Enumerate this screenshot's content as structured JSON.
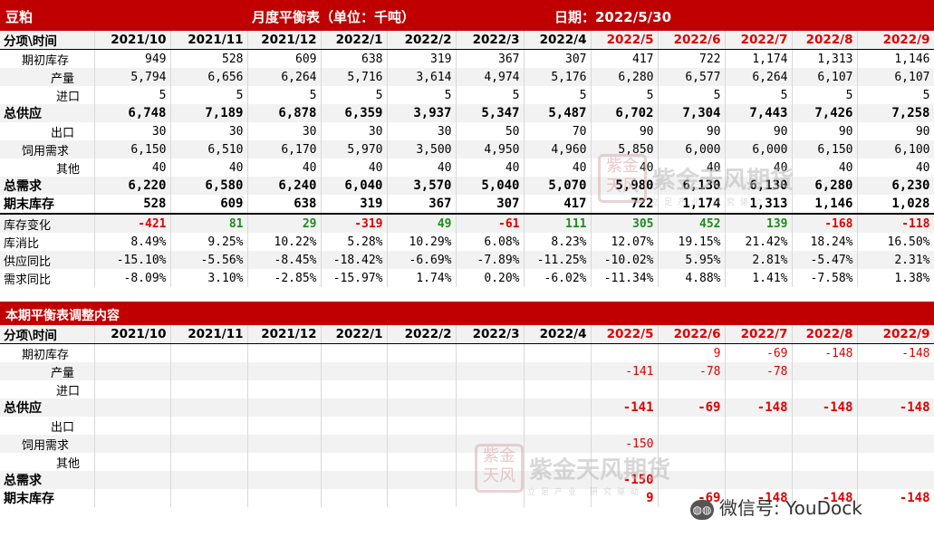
{
  "header": {
    "commodity": "豆粕",
    "title": "月度平衡表（单位：千吨）",
    "date": "日期：2022/5/30"
  },
  "columns": [
    "分项\\时间",
    "2021/10",
    "2021/11",
    "2021/12",
    "2022/1",
    "2022/2",
    "2022/3",
    "2022/4",
    "2022/5",
    "2022/6",
    "2022/7",
    "2022/8",
    "2022/9"
  ],
  "balance_rows": [
    {
      "label": "期初库存",
      "values": [
        "949",
        "528",
        "609",
        "638",
        "319",
        "367",
        "307",
        "417",
        "722",
        "1,174",
        "1,313",
        "1,146"
      ]
    },
    {
      "label": "产量",
      "values": [
        "5,794",
        "6,656",
        "6,264",
        "5,716",
        "3,614",
        "4,974",
        "5,176",
        "6,280",
        "6,577",
        "6,264",
        "6,107",
        "6,107"
      ]
    },
    {
      "label": "进口",
      "values": [
        "5",
        "5",
        "5",
        "5",
        "5",
        "5",
        "5",
        "5",
        "5",
        "5",
        "5",
        "5"
      ]
    },
    {
      "label": "总供应",
      "values": [
        "6,748",
        "7,189",
        "6,878",
        "6,359",
        "3,937",
        "5,347",
        "5,487",
        "6,702",
        "7,304",
        "7,443",
        "7,426",
        "7,258"
      ]
    },
    {
      "label": "出口",
      "values": [
        "30",
        "30",
        "30",
        "30",
        "30",
        "50",
        "70",
        "90",
        "90",
        "90",
        "90",
        "90"
      ]
    },
    {
      "label": "饲用需求",
      "values": [
        "6,150",
        "6,510",
        "6,170",
        "5,970",
        "3,500",
        "4,950",
        "4,960",
        "5,850",
        "6,000",
        "6,000",
        "6,150",
        "6,100"
      ]
    },
    {
      "label": "其他",
      "values": [
        "40",
        "40",
        "40",
        "40",
        "40",
        "40",
        "40",
        "40",
        "40",
        "40",
        "40",
        "40"
      ]
    },
    {
      "label": "总需求",
      "values": [
        "6,220",
        "6,580",
        "6,240",
        "6,040",
        "3,570",
        "5,040",
        "5,070",
        "5,980",
        "6,130",
        "6,130",
        "6,280",
        "6,230"
      ]
    },
    {
      "label": "期末库存",
      "values": [
        "528",
        "609",
        "638",
        "319",
        "367",
        "307",
        "417",
        "722",
        "1,174",
        "1,313",
        "1,146",
        "1,028"
      ]
    },
    {
      "label": "库存变化",
      "values": [
        "-421",
        "81",
        "29",
        "-319",
        "49",
        "-61",
        "111",
        "305",
        "452",
        "139",
        "-168",
        "-118"
      ]
    },
    {
      "label": "库消比",
      "values": [
        "8.49%",
        "9.25%",
        "10.22%",
        "5.28%",
        "10.29%",
        "6.08%",
        "8.23%",
        "12.07%",
        "19.15%",
        "21.42%",
        "18.24%",
        "16.50%"
      ]
    },
    {
      "label": "供应同比",
      "values": [
        "-15.10%",
        "-5.56%",
        "-8.45%",
        "-18.42%",
        "-6.69%",
        "-7.89%",
        "-11.25%",
        "-10.02%",
        "5.95%",
        "2.81%",
        "-5.47%",
        "2.31%"
      ]
    },
    {
      "label": "需求同比",
      "values": [
        "-8.09%",
        "3.10%",
        "-2.85%",
        "-15.97%",
        "1.74%",
        "0.20%",
        "-6.02%",
        "-11.34%",
        "4.88%",
        "1.41%",
        "-7.58%",
        "1.38%"
      ]
    }
  ],
  "adjust_title": "本期平衡表调整内容",
  "adjust_rows": [
    {
      "label": "期初库存",
      "values": [
        "",
        "",
        "",
        "",
        "",
        "",
        "",
        "",
        "9",
        "-69",
        "-148",
        "-148"
      ]
    },
    {
      "label": "产量",
      "values": [
        "",
        "",
        "",
        "",
        "",
        "",
        "",
        "-141",
        "-78",
        "-78",
        "",
        ""
      ]
    },
    {
      "label": "进口",
      "values": [
        "",
        "",
        "",
        "",
        "",
        "",
        "",
        "",
        "",
        "",
        "",
        ""
      ]
    },
    {
      "label": "总供应",
      "values": [
        "",
        "",
        "",
        "",
        "",
        "",
        "",
        "-141",
        "-69",
        "-148",
        "-148",
        "-148"
      ]
    },
    {
      "label": "出口",
      "values": [
        "",
        "",
        "",
        "",
        "",
        "",
        "",
        "",
        "",
        "",
        "",
        ""
      ]
    },
    {
      "label": "饲用需求",
      "values": [
        "",
        "",
        "",
        "",
        "",
        "",
        "",
        "-150",
        "",
        "",
        "",
        ""
      ]
    },
    {
      "label": "其他",
      "values": [
        "",
        "",
        "",
        "",
        "",
        "",
        "",
        "",
        "",
        "",
        "",
        ""
      ]
    },
    {
      "label": "总需求",
      "values": [
        "",
        "",
        "",
        "",
        "",
        "",
        "",
        "-150",
        "",
        "",
        "",
        ""
      ]
    },
    {
      "label": "期末库存",
      "values": [
        "",
        "",
        "",
        "",
        "",
        "",
        "",
        "9",
        "-69",
        "-148",
        "-148",
        "-148"
      ]
    }
  ],
  "watermark": {
    "seal": "紫金天风",
    "name": "紫金天风期货",
    "slogan": "立足产业 研究驱动"
  },
  "wechat": {
    "icon": "wechat-icon",
    "text": "微信号: YouDock"
  }
}
